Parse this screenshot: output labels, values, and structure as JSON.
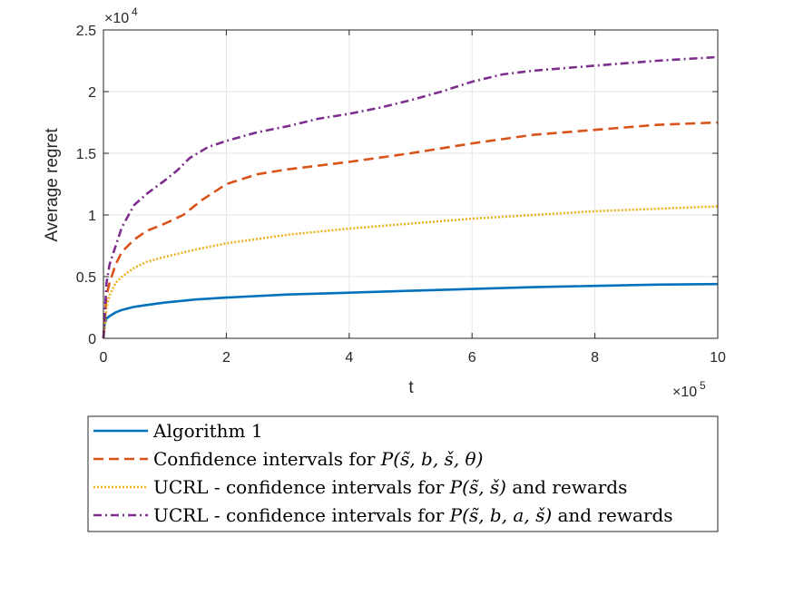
{
  "chart_data": {
    "type": "line",
    "xlabel": "t",
    "ylabel": "Average regret",
    "x_multiplier_label": "×10",
    "x_multiplier_exp": "5",
    "y_multiplier_label": "×10",
    "y_multiplier_exp": "4",
    "xlim": [
      0,
      10
    ],
    "ylim": [
      0,
      2.5
    ],
    "xticks": [
      0,
      2,
      4,
      6,
      8,
      10
    ],
    "xtick_labels": [
      "0",
      "2",
      "4",
      "6",
      "8",
      "10"
    ],
    "yticks": [
      0,
      0.5,
      1,
      1.5,
      2,
      2.5
    ],
    "ytick_labels": [
      "0",
      "0.5",
      "1",
      "1.5",
      "2",
      "2.5"
    ],
    "grid": true,
    "legend_position": "bottom-outside",
    "series": [
      {
        "name": "Algorithm 1",
        "color": "#0072BD",
        "style": "solid",
        "x": [
          0,
          0.02,
          0.05,
          0.1,
          0.2,
          0.3,
          0.5,
          0.7,
          1,
          1.5,
          2,
          3,
          4,
          5,
          6,
          7,
          8,
          9,
          10
        ],
        "y": [
          0,
          0.12,
          0.16,
          0.18,
          0.21,
          0.23,
          0.255,
          0.27,
          0.29,
          0.315,
          0.33,
          0.355,
          0.37,
          0.385,
          0.4,
          0.415,
          0.425,
          0.435,
          0.44
        ]
      },
      {
        "name": "Confidence intervals for",
        "math": "P(s̃, b, š, θ)",
        "color": "#D95319",
        "style": "dashed",
        "x": [
          0,
          0.05,
          0.1,
          0.2,
          0.3,
          0.5,
          0.7,
          1,
          1.3,
          1.6,
          2,
          2.5,
          3,
          4,
          5,
          6,
          7,
          8,
          9,
          10
        ],
        "y": [
          0,
          0.35,
          0.45,
          0.6,
          0.7,
          0.8,
          0.87,
          0.93,
          1.0,
          1.12,
          1.25,
          1.33,
          1.37,
          1.43,
          1.5,
          1.58,
          1.65,
          1.69,
          1.73,
          1.75
        ]
      },
      {
        "name": "UCRL - confidence intervals for",
        "math": "P(s̃, š)",
        "suffix": "and rewards",
        "color": "#EDB120",
        "style": "dotted",
        "x": [
          0,
          0.05,
          0.1,
          0.2,
          0.3,
          0.5,
          0.7,
          1,
          1.5,
          2,
          3,
          4,
          5,
          6,
          7,
          8,
          9,
          10
        ],
        "y": [
          0,
          0.25,
          0.35,
          0.45,
          0.5,
          0.57,
          0.62,
          0.66,
          0.72,
          0.77,
          0.84,
          0.89,
          0.93,
          0.97,
          1.0,
          1.03,
          1.05,
          1.07
        ]
      },
      {
        "name": "UCRL - confidence intervals for",
        "math": "P(s̃, b, a, š)",
        "suffix": "and rewards",
        "color": "#7E2F8E",
        "style": "dashdot",
        "x": [
          0,
          0.05,
          0.1,
          0.2,
          0.3,
          0.5,
          0.7,
          1,
          1.2,
          1.4,
          1.7,
          2,
          2.5,
          3,
          3.5,
          4,
          4.5,
          5,
          5.5,
          6,
          6.5,
          7,
          8,
          9,
          10
        ],
        "y": [
          0,
          0.45,
          0.6,
          0.75,
          0.9,
          1.08,
          1.17,
          1.28,
          1.36,
          1.46,
          1.55,
          1.6,
          1.67,
          1.72,
          1.78,
          1.82,
          1.87,
          1.93,
          2.0,
          2.08,
          2.14,
          2.17,
          2.21,
          2.25,
          2.28
        ]
      }
    ]
  }
}
